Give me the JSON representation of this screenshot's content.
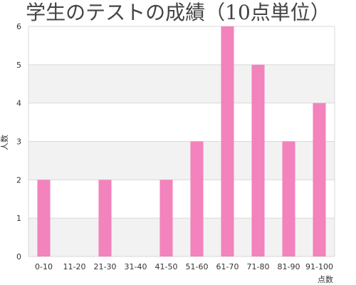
{
  "chart_data": {
    "type": "bar",
    "title": "学生のテストの成績（10点単位）",
    "xlabel": "点数",
    "ylabel": "人数",
    "categories": [
      "0-10",
      "11-20",
      "21-30",
      "31-40",
      "41-50",
      "51-60",
      "61-70",
      "71-80",
      "81-90",
      "91-100"
    ],
    "values": [
      2,
      0,
      2,
      0,
      2,
      3,
      6,
      5,
      3,
      4
    ],
    "ylim": [
      0,
      6
    ],
    "yticks": [
      0,
      1,
      2,
      3,
      4,
      5,
      6
    ],
    "grid": true,
    "legend": "none",
    "colors": {
      "bar": "#f283bc",
      "band": "#f2f2f2",
      "gridline": "#d9d9d9",
      "text": "#333333"
    }
  }
}
